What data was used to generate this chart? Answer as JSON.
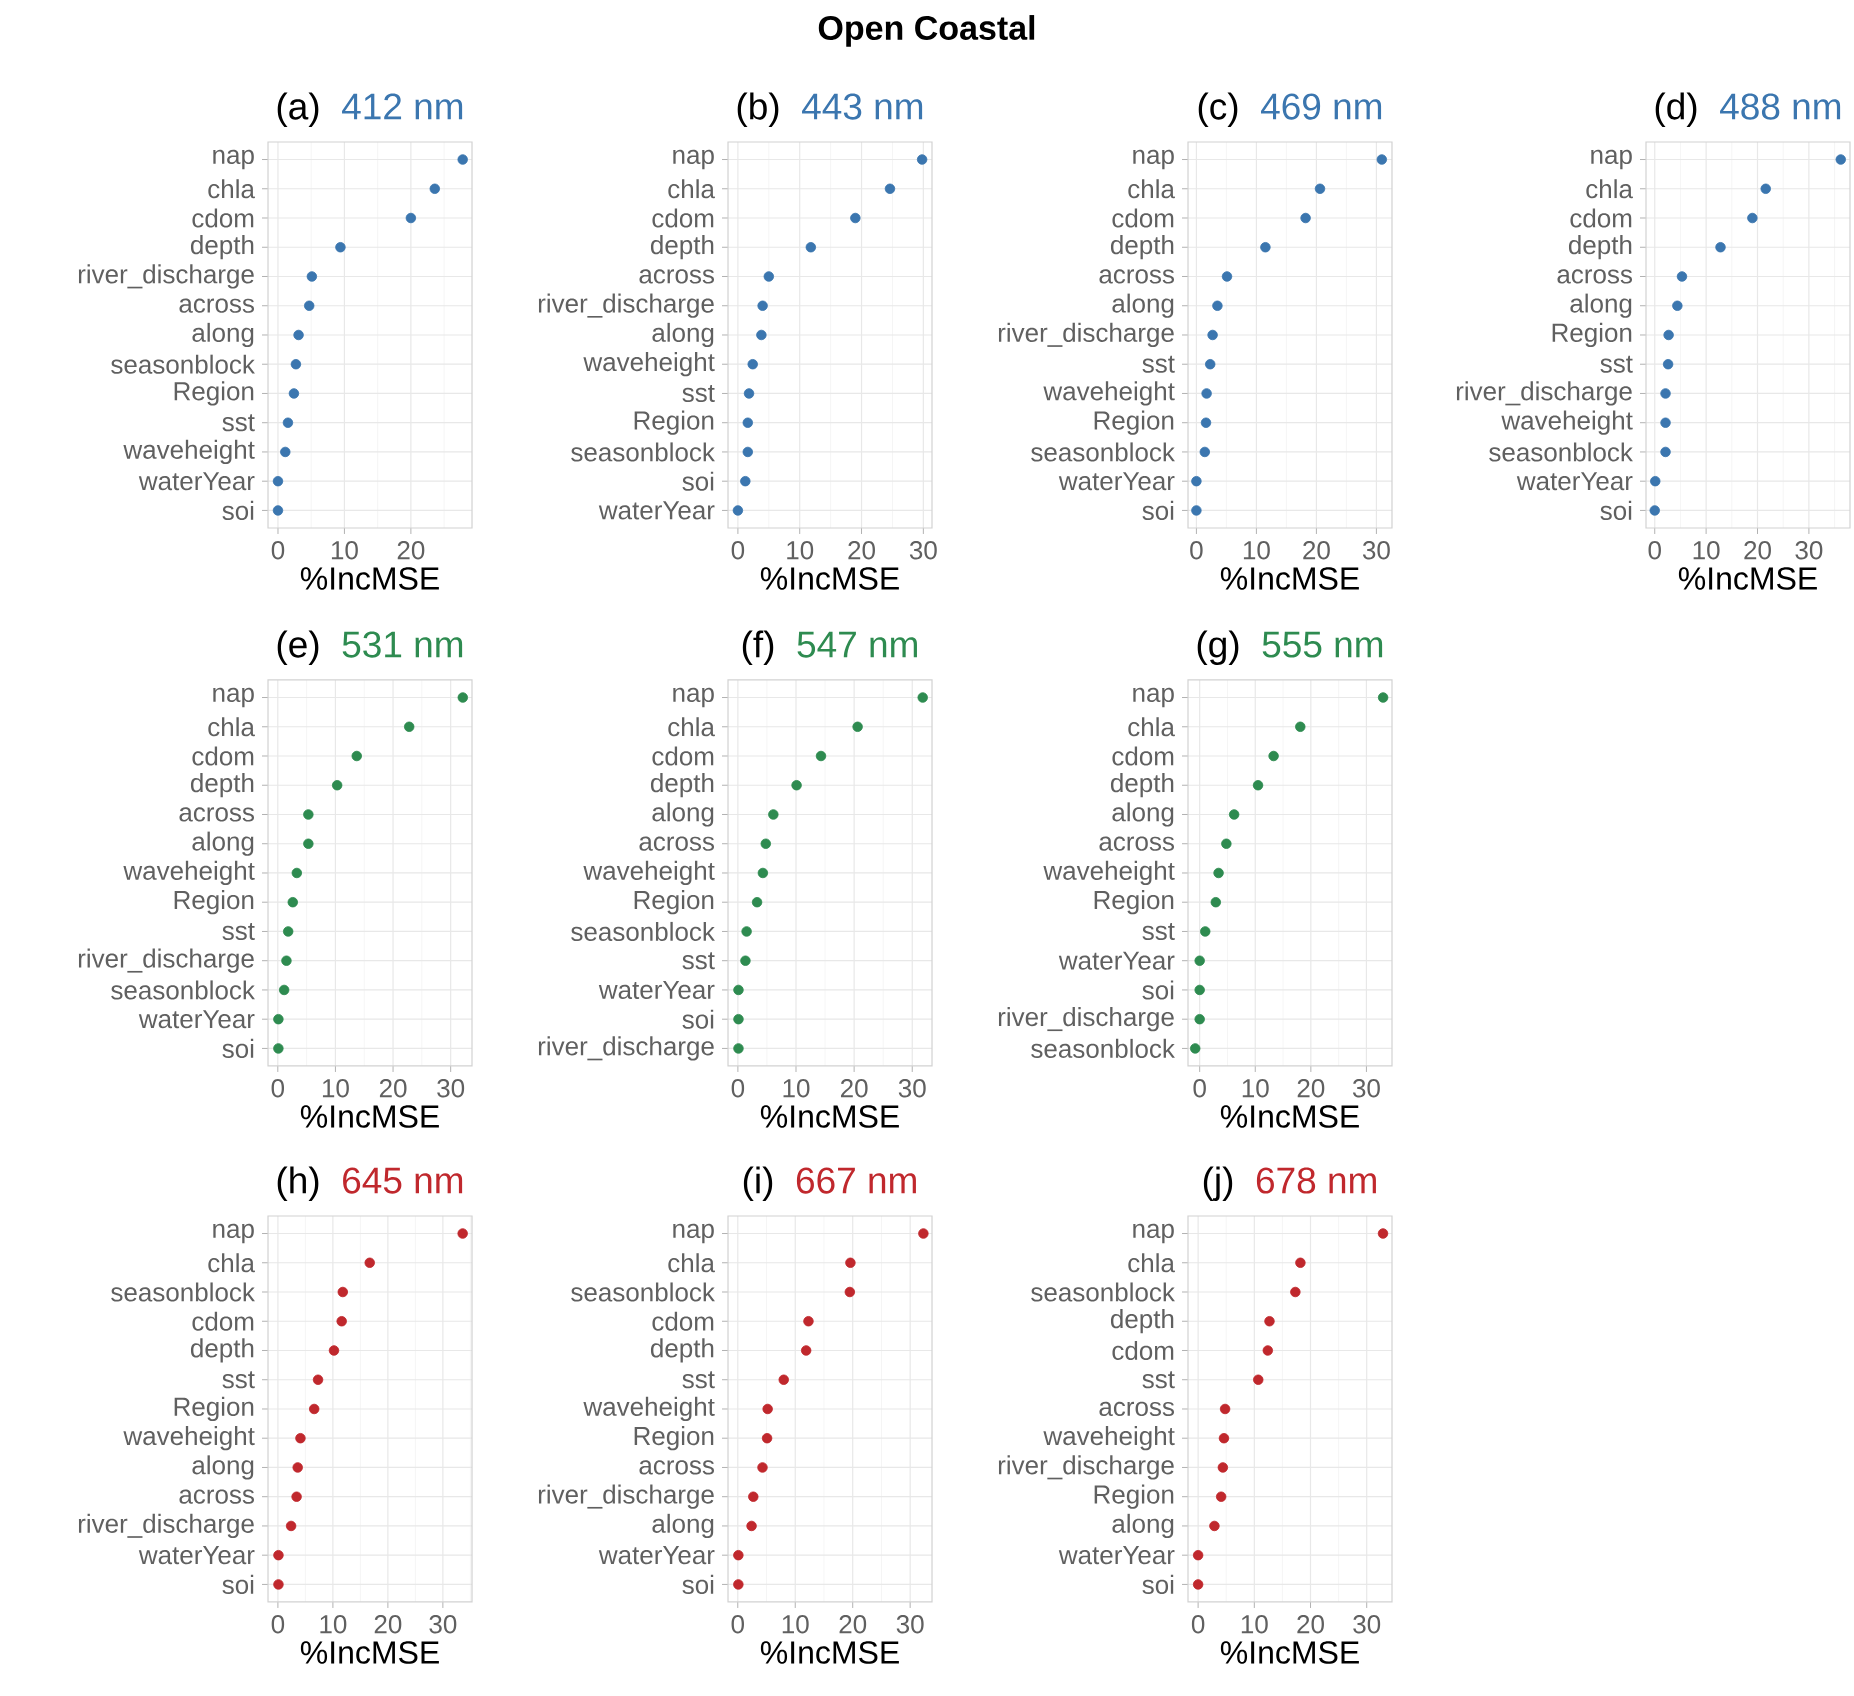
{
  "chart_data": [
    {
      "type": "scatter",
      "title": "(a)",
      "subtitle": "412 nm",
      "xlabel": "%IncMSE",
      "annotations": [
        "Open Coastal"
      ],
      "orientation": "horizontal",
      "marker": "circle",
      "grid": true,
      "color": "#3b76af",
      "xlim": [
        -1.5,
        29.2
      ],
      "xticks": [
        0,
        10,
        20
      ],
      "categories": [
        "nap",
        "chla",
        "cdom",
        "depth",
        "river_discharge",
        "across",
        "along",
        "seasonblock",
        "Region",
        "sst",
        "waveheight",
        "waterYear",
        "soi"
      ],
      "values": [
        27.8,
        23.6,
        20.0,
        9.4,
        5.1,
        4.7,
        3.1,
        2.7,
        2.4,
        1.5,
        1.1,
        0,
        0
      ]
    },
    {
      "type": "scatter",
      "title": "(b)",
      "subtitle": "443 nm",
      "xlabel": "%IncMSE",
      "orientation": "horizontal",
      "marker": "circle",
      "grid": true,
      "color": "#3b76af",
      "xlim": [
        -1.6,
        31.4
      ],
      "xticks": [
        0,
        10,
        20,
        30
      ],
      "categories": [
        "nap",
        "chla",
        "cdom",
        "depth",
        "across",
        "river_discharge",
        "along",
        "waveheight",
        "sst",
        "Region",
        "seasonblock",
        "soi",
        "waterYear"
      ],
      "values": [
        29.8,
        24.6,
        19.0,
        11.8,
        5.0,
        4.0,
        3.8,
        2.4,
        1.8,
        1.6,
        1.6,
        1.2,
        0
      ]
    },
    {
      "type": "scatter",
      "title": "(c)",
      "subtitle": "469 nm",
      "xlabel": "%IncMSE",
      "orientation": "horizontal",
      "marker": "circle",
      "grid": true,
      "color": "#3b76af",
      "xlim": [
        -1.4,
        32.6
      ],
      "xticks": [
        0,
        10,
        20,
        30
      ],
      "categories": [
        "nap",
        "chla",
        "cdom",
        "depth",
        "across",
        "along",
        "river_discharge",
        "sst",
        "waveheight",
        "Region",
        "seasonblock",
        "waterYear",
        "soi"
      ],
      "values": [
        30.9,
        20.6,
        18.2,
        11.5,
        5.1,
        3.5,
        2.7,
        2.3,
        1.7,
        1.6,
        1.4,
        0,
        0
      ]
    },
    {
      "type": "scatter",
      "title": "(d)",
      "subtitle": "488 nm",
      "xlabel": "%IncMSE",
      "orientation": "horizontal",
      "marker": "circle",
      "grid": true,
      "color": "#3b76af",
      "xlim": [
        -1.7,
        38.0
      ],
      "xticks": [
        0,
        10,
        20,
        30
      ],
      "categories": [
        "nap",
        "chla",
        "cdom",
        "depth",
        "across",
        "along",
        "Region",
        "sst",
        "river_discharge",
        "waveheight",
        "seasonblock",
        "waterYear",
        "soi"
      ],
      "values": [
        36.2,
        21.6,
        19.0,
        12.8,
        5.3,
        4.4,
        2.7,
        2.6,
        2.1,
        2.1,
        2.1,
        0.1,
        0
      ]
    },
    {
      "type": "scatter",
      "title": "(e)",
      "subtitle": "531 nm",
      "xlabel": "%IncMSE",
      "orientation": "horizontal",
      "marker": "circle",
      "grid": true,
      "color": "#2e8b50",
      "xlim": [
        -1.7,
        33.7
      ],
      "xticks": [
        0,
        10,
        20,
        30
      ],
      "categories": [
        "nap",
        "chla",
        "cdom",
        "depth",
        "across",
        "along",
        "waveheight",
        "Region",
        "sst",
        "river_discharge",
        "seasonblock",
        "waterYear",
        "soi"
      ],
      "values": [
        32.1,
        22.8,
        13.7,
        10.3,
        5.3,
        5.3,
        3.3,
        2.6,
        1.8,
        1.5,
        1.1,
        0.1,
        0.1
      ]
    },
    {
      "type": "scatter",
      "title": "(f)",
      "subtitle": "547 nm",
      "xlabel": "%IncMSE",
      "orientation": "horizontal",
      "marker": "circle",
      "grid": true,
      "color": "#2e8b50",
      "xlim": [
        -1.7,
        33.4
      ],
      "xticks": [
        0,
        10,
        20,
        30
      ],
      "categories": [
        "nap",
        "chla",
        "cdom",
        "depth",
        "along",
        "across",
        "waveheight",
        "Region",
        "seasonblock",
        "sst",
        "waterYear",
        "soi",
        "river_discharge"
      ],
      "values": [
        31.8,
        20.6,
        14.3,
        10.1,
        6.1,
        4.8,
        4.3,
        3.3,
        1.5,
        1.3,
        0.1,
        0.1,
        0.1
      ]
    },
    {
      "type": "scatter",
      "title": "(g)",
      "subtitle": "555 nm",
      "xlabel": "%IncMSE",
      "orientation": "horizontal",
      "marker": "circle",
      "grid": true,
      "color": "#2e8b50",
      "xlim": [
        -2.1,
        34.6
      ],
      "xticks": [
        0,
        10,
        20,
        30
      ],
      "categories": [
        "nap",
        "chla",
        "cdom",
        "depth",
        "along",
        "across",
        "waveheight",
        "Region",
        "sst",
        "waterYear",
        "soi",
        "river_discharge",
        "seasonblock"
      ],
      "values": [
        33.0,
        18.1,
        13.3,
        10.5,
        6.2,
        4.8,
        3.4,
        2.9,
        1.0,
        0,
        0,
        0,
        -0.8
      ]
    },
    {
      "type": "scatter",
      "title": "(h)",
      "subtitle": "645 nm",
      "xlabel": "%IncMSE",
      "orientation": "horizontal",
      "marker": "circle",
      "grid": true,
      "color": "#c0282d",
      "xlim": [
        -1.8,
        35.3
      ],
      "xticks": [
        0,
        10,
        20,
        30
      ],
      "categories": [
        "nap",
        "chla",
        "seasonblock",
        "cdom",
        "depth",
        "sst",
        "Region",
        "waveheight",
        "along",
        "across",
        "river_discharge",
        "waterYear",
        "soi"
      ],
      "values": [
        33.6,
        16.7,
        11.8,
        11.6,
        10.2,
        7.3,
        6.6,
        4.1,
        3.6,
        3.4,
        2.4,
        0.1,
        0.1
      ]
    },
    {
      "type": "scatter",
      "title": "(i)",
      "subtitle": "667 nm",
      "xlabel": "%IncMSE",
      "orientation": "horizontal",
      "marker": "circle",
      "grid": true,
      "color": "#c0282d",
      "xlim": [
        -1.7,
        33.8
      ],
      "xticks": [
        0,
        10,
        20,
        30
      ],
      "categories": [
        "nap",
        "chla",
        "seasonblock",
        "cdom",
        "depth",
        "sst",
        "waveheight",
        "Region",
        "across",
        "river_discharge",
        "along",
        "waterYear",
        "soi"
      ],
      "values": [
        32.3,
        19.6,
        19.5,
        12.3,
        11.9,
        8.0,
        5.2,
        5.1,
        4.3,
        2.7,
        2.4,
        0.1,
        0.1
      ]
    },
    {
      "type": "scatter",
      "title": "(j)",
      "subtitle": "678 nm",
      "xlabel": "%IncMSE",
      "orientation": "horizontal",
      "marker": "circle",
      "grid": true,
      "color": "#c0282d",
      "xlim": [
        -1.8,
        34.5
      ],
      "xticks": [
        0,
        10,
        20,
        30
      ],
      "categories": [
        "nap",
        "chla",
        "seasonblock",
        "depth",
        "cdom",
        "sst",
        "across",
        "waveheight",
        "river_discharge",
        "Region",
        "along",
        "waterYear",
        "soi"
      ],
      "values": [
        32.9,
        18.2,
        17.3,
        12.7,
        12.4,
        10.7,
        4.8,
        4.6,
        4.4,
        4.1,
        2.9,
        0,
        0
      ]
    }
  ]
}
